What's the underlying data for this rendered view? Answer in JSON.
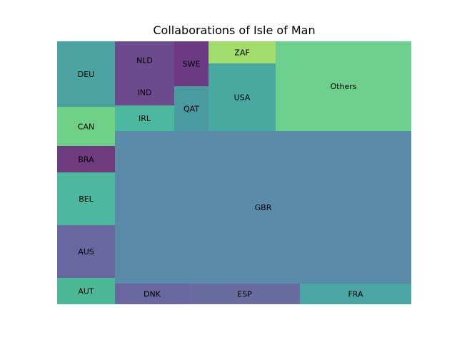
{
  "chart_data": {
    "type": "treemap",
    "title": "Collaborations of Isle of Man",
    "grid": false,
    "legend": "none",
    "cells": [
      {
        "label": "DEU",
        "color": "#4aa3a0"
      },
      {
        "label": "CAN",
        "color": "#6ecf87"
      },
      {
        "label": "BRA",
        "color": "#6e3b7f"
      },
      {
        "label": "BEL",
        "color": "#4db89d"
      },
      {
        "label": "AUS",
        "color": "#6a66a0"
      },
      {
        "label": "AUT",
        "color": "#4cb898"
      },
      {
        "label": "NLD",
        "color": "#6c4a8d"
      },
      {
        "label": "IND",
        "color": "#6c4a8d"
      },
      {
        "label": "IRL",
        "color": "#4cb8a0"
      },
      {
        "label": "SWE",
        "color": "#6b3a83"
      },
      {
        "label": "QAT",
        "color": "#4a9ba0"
      },
      {
        "label": "ZAF",
        "color": "#a2dc6c"
      },
      {
        "label": "USA",
        "color": "#4aa8a3"
      },
      {
        "label": "Others",
        "color": "#6ccf8b"
      },
      {
        "label": "GBR",
        "color": "#5a8ba8"
      },
      {
        "label": "DNK",
        "color": "#6a66a0"
      },
      {
        "label": "ESP",
        "color": "#6a6ca0"
      },
      {
        "label": "FRA",
        "color": "#4aa6a4"
      }
    ]
  }
}
